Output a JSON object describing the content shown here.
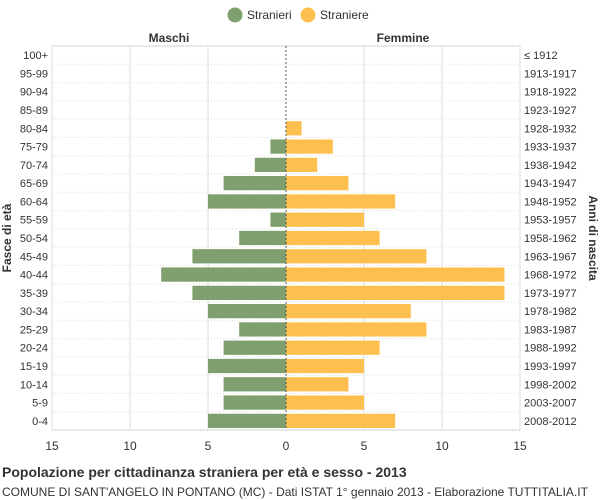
{
  "chart_data": {
    "type": "bar",
    "orientation": "horizontal-population-pyramid",
    "title": "Popolazione per cittadinanza straniera per età e sesso - 2013",
    "subtitle": "COMUNE DI SANT'ANGELO IN PONTANO (MC) - Dati ISTAT 1° gennaio 2013 - Elaborazione TUTTITALIA.IT",
    "legend": [
      {
        "name": "Stranieri",
        "color": "#7fa06e"
      },
      {
        "name": "Straniere",
        "color": "#fdc04f"
      }
    ],
    "legend_position": "top-center",
    "left_heading": "Maschi",
    "right_heading": "Femmine",
    "ylabel_left": "Fasce di età",
    "ylabel_right": "Anni di nascita",
    "xlim": [
      -15,
      15
    ],
    "x_ticks": [
      "15",
      "10",
      "5",
      "0",
      "5",
      "10",
      "15"
    ],
    "grid": true,
    "categories": [
      "100+",
      "95-99",
      "90-94",
      "85-89",
      "80-84",
      "75-79",
      "70-74",
      "65-69",
      "60-64",
      "55-59",
      "50-54",
      "45-49",
      "40-44",
      "35-39",
      "30-34",
      "25-29",
      "20-24",
      "15-19",
      "10-14",
      "5-9",
      "0-4"
    ],
    "birth_years": [
      "≤ 1912",
      "1913-1917",
      "1918-1922",
      "1923-1927",
      "1928-1932",
      "1933-1937",
      "1938-1942",
      "1943-1947",
      "1948-1952",
      "1953-1957",
      "1958-1962",
      "1963-1967",
      "1968-1972",
      "1973-1977",
      "1978-1982",
      "1983-1987",
      "1988-1992",
      "1993-1997",
      "1998-2002",
      "2003-2007",
      "2008-2012"
    ],
    "series": [
      {
        "name": "Stranieri",
        "values": [
          0,
          0,
          0,
          0,
          0,
          1,
          2,
          4,
          5,
          1,
          3,
          6,
          8,
          6,
          5,
          3,
          4,
          5,
          4,
          4,
          5
        ]
      },
      {
        "name": "Straniere",
        "values": [
          0,
          0,
          0,
          0,
          1,
          3,
          2,
          4,
          7,
          5,
          6,
          9,
          14,
          14,
          8,
          9,
          6,
          5,
          4,
          5,
          7
        ]
      }
    ]
  }
}
